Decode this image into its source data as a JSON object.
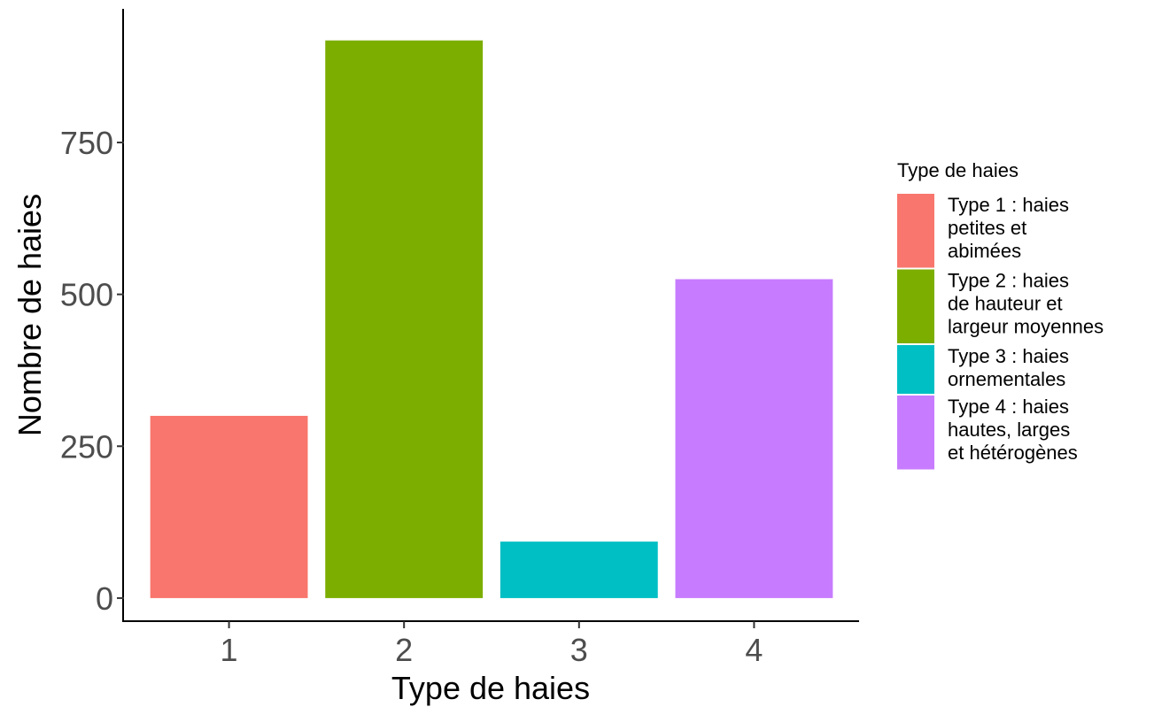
{
  "chart_data": {
    "type": "bar",
    "xlabel": "Type de haies",
    "ylabel": "Nombre de haies",
    "categories": [
      "1",
      "2",
      "3",
      "4"
    ],
    "values": [
      300,
      918,
      93,
      525
    ],
    "colors": [
      "#F8766D",
      "#7CAE00",
      "#00BFC4",
      "#C77CFF"
    ],
    "ylim": [
      -38,
      970
    ],
    "yticks": [
      0,
      250,
      500,
      750
    ],
    "ytick_labels": [
      "0",
      "250",
      "500",
      "750"
    ],
    "grid": false,
    "legend": {
      "title": "Type de haies",
      "placement": "right",
      "entries": [
        {
          "lines": [
            "Type 1 : haies",
            "petites et",
            "abimées"
          ],
          "color": "#F8766D"
        },
        {
          "lines": [
            "Type 2 : haies",
            "de hauteur et",
            "largeur moyennes"
          ],
          "color": "#7CAE00"
        },
        {
          "lines": [
            "Type 3 : haies",
            "ornementales"
          ],
          "color": "#00BFC4"
        },
        {
          "lines": [
            "Type 4 : haies",
            "hautes, larges",
            "et hétérogènes"
          ],
          "color": "#C77CFF"
        }
      ]
    }
  }
}
